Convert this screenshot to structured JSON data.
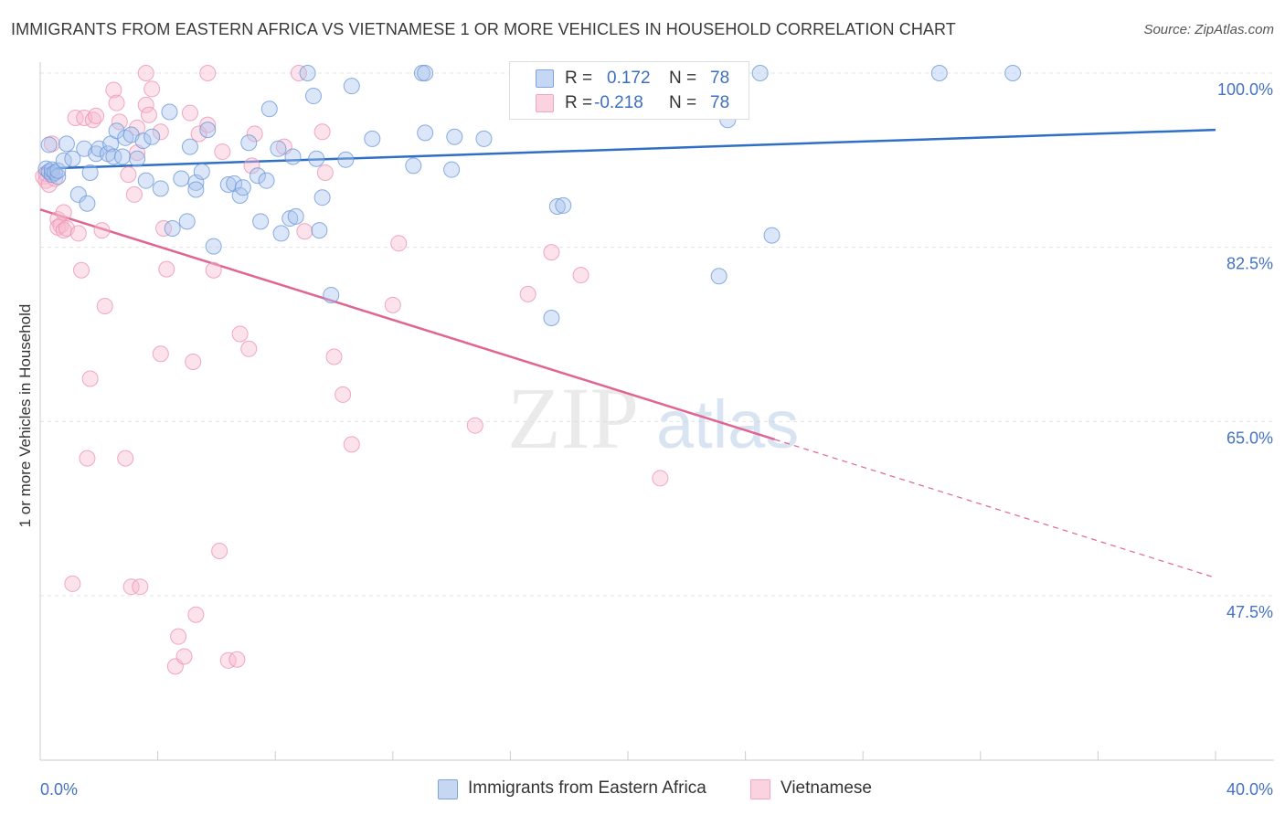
{
  "title": "IMMIGRANTS FROM EASTERN AFRICA VS VIETNAMESE 1 OR MORE VEHICLES IN HOUSEHOLD CORRELATION CHART",
  "source": "Source: ZipAtlas.com",
  "watermark": {
    "zip": "ZIP",
    "atlas": "atlas"
  },
  "legend_top": {
    "rows": [
      {
        "r_key": "R =",
        "r_val": "0.172",
        "n_key": "N =",
        "n_val": "78"
      },
      {
        "r_key": "R =",
        "r_val": "-0.218",
        "n_key": "N =",
        "n_val": "78"
      }
    ]
  },
  "chart_data": {
    "type": "scatter",
    "title": "IMMIGRANTS FROM EASTERN AFRICA VS VIETNAMESE 1 OR MORE VEHICLES IN HOUSEHOLD CORRELATION CHART",
    "xlabel": "",
    "ylabel": "1 or more Vehicles in Household",
    "x_tick_labels": [
      "0.0%",
      "40.0%"
    ],
    "y_tick_labels": [
      "100.0%",
      "82.5%",
      "65.0%",
      "47.5%"
    ],
    "y_ticks": [
      100.0,
      82.5,
      65.0,
      47.5
    ],
    "xlim": [
      0,
      40
    ],
    "ylim": [
      30,
      101.5
    ],
    "grid": true,
    "legend_position": "bottom",
    "colors": {
      "blue": "#7ba4e0",
      "blue_line": "#2f6fc4",
      "pink": "#f0a6bf",
      "pink_line": "#e06593",
      "tick_text": "#4472c4"
    },
    "series": [
      {
        "name": "Immigrants from Eastern Africa",
        "color": "#7ba4e0",
        "trend": {
          "x": [
            0,
            40
          ],
          "y": [
            90.4,
            94.3
          ]
        },
        "points": [
          [
            0.2,
            90.4
          ],
          [
            0.3,
            92.8
          ],
          [
            0.3,
            90.1
          ],
          [
            0.4,
            89.8
          ],
          [
            0.4,
            90.3
          ],
          [
            0.5,
            90.0
          ],
          [
            0.6,
            89.6
          ],
          [
            0.6,
            90.2
          ],
          [
            0.8,
            91.2
          ],
          [
            0.9,
            92.9
          ],
          [
            1.1,
            91.4
          ],
          [
            1.3,
            87.8
          ],
          [
            1.5,
            92.4
          ],
          [
            1.6,
            86.9
          ],
          [
            1.7,
            90.0
          ],
          [
            1.9,
            91.9
          ],
          [
            2.0,
            92.4
          ],
          [
            2.3,
            91.9
          ],
          [
            2.4,
            92.9
          ],
          [
            2.5,
            91.6
          ],
          [
            2.6,
            94.2
          ],
          [
            2.8,
            91.6
          ],
          [
            2.9,
            93.5
          ],
          [
            3.1,
            93.8
          ],
          [
            3.3,
            91.4
          ],
          [
            3.5,
            93.2
          ],
          [
            3.6,
            89.2
          ],
          [
            3.8,
            93.6
          ],
          [
            4.1,
            88.4
          ],
          [
            4.4,
            96.1
          ],
          [
            4.5,
            84.4
          ],
          [
            4.8,
            89.4
          ],
          [
            5.0,
            85.1
          ],
          [
            5.1,
            92.6
          ],
          [
            5.3,
            89.0
          ],
          [
            5.3,
            88.3
          ],
          [
            5.5,
            90.1
          ],
          [
            5.7,
            94.3
          ],
          [
            5.9,
            82.6
          ],
          [
            6.4,
            88.8
          ],
          [
            6.6,
            88.9
          ],
          [
            6.8,
            87.7
          ],
          [
            6.9,
            88.5
          ],
          [
            7.1,
            93.0
          ],
          [
            7.4,
            89.7
          ],
          [
            7.5,
            85.1
          ],
          [
            7.7,
            89.2
          ],
          [
            7.8,
            96.4
          ],
          [
            8.1,
            92.4
          ],
          [
            8.2,
            83.9
          ],
          [
            8.5,
            85.4
          ],
          [
            8.6,
            91.6
          ],
          [
            8.7,
            85.6
          ],
          [
            9.1,
            100.0
          ],
          [
            9.3,
            97.7
          ],
          [
            9.4,
            91.4
          ],
          [
            9.5,
            84.2
          ],
          [
            9.6,
            87.5
          ],
          [
            9.9,
            77.7
          ],
          [
            10.4,
            91.3
          ],
          [
            10.6,
            98.7
          ],
          [
            11.3,
            93.4
          ],
          [
            12.7,
            90.7
          ],
          [
            13.0,
            100.0
          ],
          [
            13.1,
            100.0
          ],
          [
            13.1,
            94.0
          ],
          [
            14.0,
            90.3
          ],
          [
            14.1,
            93.6
          ],
          [
            15.1,
            93.4
          ],
          [
            17.4,
            75.4
          ],
          [
            17.6,
            86.6
          ],
          [
            17.8,
            86.7
          ],
          [
            23.1,
            79.6
          ],
          [
            23.4,
            95.3
          ],
          [
            24.5,
            100.0
          ],
          [
            24.9,
            83.7
          ],
          [
            30.6,
            100.0
          ],
          [
            33.1,
            100.0
          ]
        ]
      },
      {
        "name": "Vietnamese",
        "color": "#f0a6bf",
        "trend": {
          "x": [
            0,
            25
          ],
          "y": [
            86.3,
            63.2
          ]
        },
        "trend_dashed": {
          "x": [
            25,
            40
          ],
          "y": [
            63.2,
            49.3
          ]
        },
        "points": [
          [
            0.1,
            89.6
          ],
          [
            0.2,
            89.2
          ],
          [
            0.2,
            89.9
          ],
          [
            0.3,
            88.8
          ],
          [
            0.4,
            92.9
          ],
          [
            0.5,
            89.4
          ],
          [
            0.6,
            85.3
          ],
          [
            0.6,
            84.5
          ],
          [
            0.7,
            84.7
          ],
          [
            0.8,
            84.2
          ],
          [
            0.8,
            86.0
          ],
          [
            0.9,
            84.4
          ],
          [
            1.1,
            48.7
          ],
          [
            1.2,
            95.5
          ],
          [
            1.3,
            83.9
          ],
          [
            1.4,
            80.2
          ],
          [
            1.5,
            95.5
          ],
          [
            1.6,
            61.3
          ],
          [
            1.7,
            69.3
          ],
          [
            1.8,
            95.3
          ],
          [
            1.9,
            95.7
          ],
          [
            2.1,
            84.2
          ],
          [
            2.2,
            76.6
          ],
          [
            2.5,
            98.3
          ],
          [
            2.6,
            97.0
          ],
          [
            2.7,
            95.1
          ],
          [
            2.9,
            61.3
          ],
          [
            3.0,
            89.8
          ],
          [
            3.1,
            48.4
          ],
          [
            3.2,
            87.8
          ],
          [
            3.3,
            92.0
          ],
          [
            3.3,
            94.5
          ],
          [
            3.4,
            48.4
          ],
          [
            3.6,
            96.8
          ],
          [
            3.7,
            95.8
          ],
          [
            3.8,
            98.4
          ],
          [
            4.1,
            94.1
          ],
          [
            4.1,
            71.8
          ],
          [
            4.2,
            84.4
          ],
          [
            4.3,
            80.3
          ],
          [
            4.6,
            40.4
          ],
          [
            4.7,
            43.4
          ],
          [
            4.9,
            41.4
          ],
          [
            5.1,
            96.0
          ],
          [
            5.2,
            71.0
          ],
          [
            5.3,
            45.6
          ],
          [
            5.4,
            93.9
          ],
          [
            5.7,
            94.8
          ],
          [
            5.9,
            80.2
          ],
          [
            6.1,
            52.0
          ],
          [
            6.2,
            92.1
          ],
          [
            6.4,
            41.0
          ],
          [
            6.7,
            41.1
          ],
          [
            6.8,
            73.8
          ],
          [
            7.1,
            72.3
          ],
          [
            7.2,
            90.7
          ],
          [
            7.3,
            93.9
          ],
          [
            8.3,
            92.6
          ],
          [
            8.8,
            100.0
          ],
          [
            9.0,
            84.1
          ],
          [
            9.6,
            94.1
          ],
          [
            9.7,
            90.0
          ],
          [
            10.0,
            71.5
          ],
          [
            10.3,
            67.7
          ],
          [
            10.6,
            62.7
          ],
          [
            12.0,
            76.7
          ],
          [
            12.2,
            82.9
          ],
          [
            14.8,
            64.6
          ],
          [
            16.6,
            77.8
          ],
          [
            17.4,
            82.0
          ],
          [
            17.5,
            100.0
          ],
          [
            18.2,
            99.8
          ],
          [
            18.4,
            79.7
          ],
          [
            21.1,
            59.3
          ],
          [
            23.2,
            100.0
          ],
          [
            23.4,
            98.7
          ],
          [
            5.7,
            100.0
          ],
          [
            3.6,
            100.0
          ]
        ]
      }
    ]
  }
}
